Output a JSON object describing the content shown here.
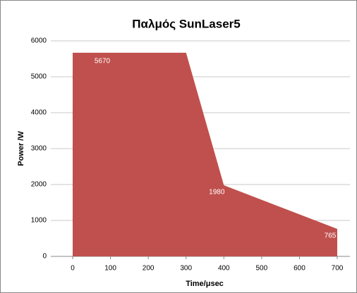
{
  "chart_data": {
    "type": "area",
    "title": "Παλμός SunLaser5",
    "x_label": "Time/μsec",
    "y_label": "Power /W",
    "x": [
      0,
      300,
      400,
      700
    ],
    "values": [
      5670,
      5670,
      1980,
      765
    ],
    "color": "#c0504d",
    "labeled_points": [
      0,
      2,
      3
    ],
    "xlim": [
      0,
      700
    ],
    "xticks": [
      0,
      100,
      200,
      300,
      400,
      500,
      600,
      700
    ],
    "ylim": [
      0,
      6000
    ],
    "yticks": [
      0,
      1000,
      2000,
      3000,
      4000,
      5000,
      6000
    ],
    "grid": true
  }
}
